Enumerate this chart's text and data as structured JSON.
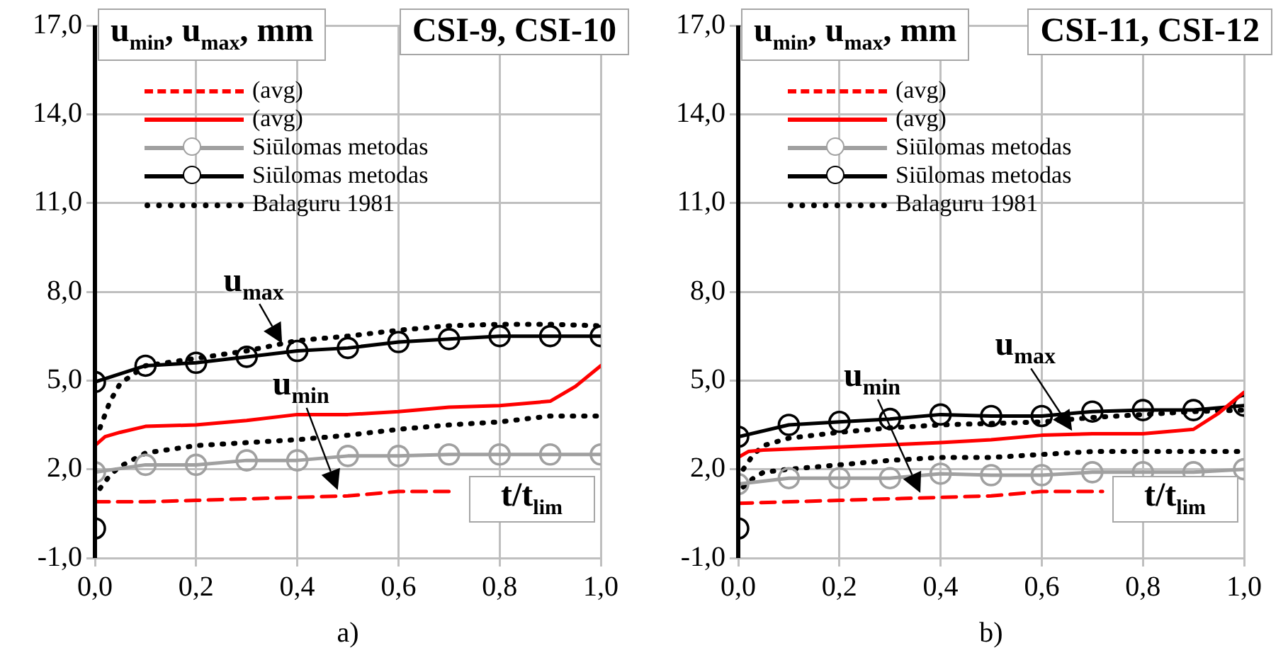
{
  "chart_data": [
    {
      "type": "line",
      "title": "CSI-9, CSI-10",
      "ylabel": "u$_{min}$, u$_{max}$, mm",
      "xlabel": "t/t$_{lim}$",
      "xlim": [
        0,
        1
      ],
      "xticks": [
        {
          "value": 0,
          "label": "0,0"
        },
        {
          "value": 0.2,
          "label": "0,2"
        },
        {
          "value": 0.4,
          "label": "0,4"
        },
        {
          "value": 0.6,
          "label": "0,6"
        },
        {
          "value": 0.8,
          "label": "0,8"
        },
        {
          "value": 1,
          "label": "1,0"
        }
      ],
      "ylim": [
        -1,
        17
      ],
      "yticks": [
        {
          "value": -1,
          "label": "-1,0"
        },
        {
          "value": 2,
          "label": "2,0"
        },
        {
          "value": 5,
          "label": "5,0"
        },
        {
          "value": 8,
          "label": "8,0"
        },
        {
          "value": 11,
          "label": "11,0"
        },
        {
          "value": 14,
          "label": "14,0"
        },
        {
          "value": 17,
          "label": "17,0"
        }
      ],
      "grid": true,
      "legend": "top",
      "annotations": [
        {
          "text": "u$_{max}$",
          "x": 0.37,
          "y": 6.25
        },
        {
          "text": "u$_{min}$",
          "x": 0.48,
          "y": 1.3
        },
        "a)"
      ],
      "series": [
        {
          "name": "(avg)",
          "color": "#ff0000",
          "line_style": "dashed",
          "marker": "none",
          "x": [
            0,
            0.1,
            0.2,
            0.3,
            0.4,
            0.5,
            0.6,
            0.71
          ],
          "values": [
            0.9,
            0.9,
            0.95,
            1.0,
            1.05,
            1.1,
            1.25,
            1.25
          ]
        },
        {
          "name": "(avg)",
          "color": "#ff0000",
          "line_style": "solid",
          "marker": "none",
          "x": [
            0,
            0.02,
            0.05,
            0.1,
            0.2,
            0.3,
            0.4,
            0.5,
            0.6,
            0.7,
            0.8,
            0.9,
            0.95,
            1.0
          ],
          "values": [
            2.8,
            3.1,
            3.25,
            3.45,
            3.5,
            3.65,
            3.85,
            3.85,
            3.95,
            4.1,
            4.15,
            4.3,
            4.8,
            5.5
          ]
        },
        {
          "name": "Siūlomas metodas",
          "color": "#a0a0a0",
          "line_style": "solid",
          "marker": "circle",
          "x": [
            0,
            0.1,
            0.2,
            0.3,
            0.4,
            0.5,
            0.6,
            0.7,
            0.8,
            0.9,
            1.0
          ],
          "values": [
            1.9,
            2.15,
            2.15,
            2.3,
            2.3,
            2.45,
            2.45,
            2.5,
            2.5,
            2.5,
            2.5
          ]
        },
        {
          "name": "Siūlomas metodas",
          "color": "#000000",
          "line_style": "solid",
          "marker": "circle",
          "x": [
            0,
            0,
            0.1,
            0.2,
            0.3,
            0.4,
            0.5,
            0.6,
            0.7,
            0.8,
            0.9,
            1.0
          ],
          "values": [
            0,
            4.95,
            5.5,
            5.6,
            5.8,
            6.0,
            6.1,
            6.3,
            6.4,
            6.5,
            6.5,
            6.5
          ]
        },
        {
          "name": "Balaguru 1981",
          "color": "#000000",
          "line_style": "dotted",
          "marker": "none",
          "x": [
            0.01,
            0.03,
            0.05,
            0.1,
            0.2,
            0.3,
            0.4,
            0.5,
            0.6,
            0.7,
            0.8,
            0.9,
            1.0
          ],
          "values": [
            3.4,
            4.3,
            4.9,
            5.5,
            5.75,
            6.0,
            6.35,
            6.5,
            6.7,
            6.85,
            6.9,
            6.9,
            6.85
          ]
        },
        {
          "color": "#000000",
          "line_style": "dotted",
          "marker": "none",
          "x": [
            0.01,
            0.03,
            0.05,
            0.1,
            0.2,
            0.3,
            0.4,
            0.5,
            0.6,
            0.7,
            0.8,
            0.9,
            1.0
          ],
          "values": [
            1.35,
            1.8,
            2.1,
            2.55,
            2.8,
            2.9,
            3.0,
            3.15,
            3.35,
            3.5,
            3.6,
            3.8,
            3.8
          ]
        }
      ]
    },
    {
      "type": "line",
      "title": "CSI-11, CSI-12",
      "ylabel": "u$_{min}$, u$_{max}$, mm",
      "xlabel": "t/t$_{lim}$",
      "xlim": [
        0,
        1
      ],
      "xticks": [
        {
          "value": 0,
          "label": "0,0"
        },
        {
          "value": 0.2,
          "label": "0,2"
        },
        {
          "value": 0.4,
          "label": "0,4"
        },
        {
          "value": 0.6,
          "label": "0,6"
        },
        {
          "value": 0.8,
          "label": "0,8"
        },
        {
          "value": 1,
          "label": "1,0"
        }
      ],
      "ylim": [
        -1,
        17
      ],
      "yticks": [
        {
          "value": -1,
          "label": "-1,0"
        },
        {
          "value": 2,
          "label": "2,0"
        },
        {
          "value": 5,
          "label": "5,0"
        },
        {
          "value": 8,
          "label": "8,0"
        },
        {
          "value": 11,
          "label": "11,0"
        },
        {
          "value": 14,
          "label": "14,0"
        },
        {
          "value": 17,
          "label": "17,0"
        }
      ],
      "grid": true,
      "legend": "top",
      "annotations": [
        {
          "text": "u$_{min}$",
          "x": 0.36,
          "y": 1.2
        },
        {
          "text": "u$_{max}$",
          "x": 0.66,
          "y": 3.3
        },
        "b)"
      ],
      "series": [
        {
          "name": "(avg)",
          "color": "#ff0000",
          "line_style": "dashed",
          "marker": "none",
          "x": [
            0,
            0.2,
            0.4,
            0.5,
            0.6,
            0.72
          ],
          "values": [
            0.85,
            0.95,
            1.05,
            1.1,
            1.25,
            1.25
          ]
        },
        {
          "name": "(avg)",
          "color": "#ff0000",
          "line_style": "solid",
          "marker": "none",
          "x": [
            0,
            0.02,
            0.05,
            0.2,
            0.4,
            0.5,
            0.6,
            0.7,
            0.8,
            0.9,
            0.95,
            1.0
          ],
          "values": [
            2.4,
            2.6,
            2.65,
            2.75,
            2.9,
            3.0,
            3.15,
            3.2,
            3.2,
            3.35,
            3.9,
            4.6
          ]
        },
        {
          "name": "Siūlomas metodas",
          "color": "#a0a0a0",
          "line_style": "solid",
          "marker": "circle",
          "x": [
            0,
            0.1,
            0.2,
            0.3,
            0.4,
            0.5,
            0.6,
            0.7,
            0.8,
            0.9,
            1.0
          ],
          "values": [
            1.5,
            1.7,
            1.7,
            1.7,
            1.85,
            1.8,
            1.8,
            1.9,
            1.9,
            1.9,
            2.0
          ]
        },
        {
          "name": "Siūlomas metodas",
          "color": "#000000",
          "line_style": "solid",
          "marker": "circle",
          "x": [
            0,
            0,
            0.1,
            0.2,
            0.3,
            0.4,
            0.5,
            0.6,
            0.7,
            0.8,
            0.9,
            1.0
          ],
          "values": [
            0,
            3.1,
            3.5,
            3.6,
            3.7,
            3.85,
            3.8,
            3.8,
            3.95,
            4.0,
            4.0,
            4.15
          ]
        },
        {
          "name": "Balaguru 1981",
          "color": "#000000",
          "line_style": "dotted",
          "marker": "none",
          "x": [
            0.01,
            0.03,
            0.05,
            0.1,
            0.2,
            0.3,
            0.4,
            0.5,
            0.6,
            0.7,
            0.8,
            0.9,
            1.0
          ],
          "values": [
            2.0,
            2.5,
            2.8,
            3.05,
            3.25,
            3.4,
            3.5,
            3.55,
            3.6,
            3.75,
            3.85,
            3.95,
            4.0
          ]
        },
        {
          "color": "#000000",
          "line_style": "dotted",
          "marker": "none",
          "x": [
            0.01,
            0.03,
            0.05,
            0.1,
            0.2,
            0.3,
            0.4,
            0.5,
            0.6,
            0.7,
            0.8,
            0.9,
            1.0
          ],
          "values": [
            1.4,
            1.7,
            1.9,
            2.0,
            2.15,
            2.3,
            2.4,
            2.4,
            2.5,
            2.6,
            2.6,
            2.6,
            2.6
          ]
        }
      ]
    }
  ]
}
